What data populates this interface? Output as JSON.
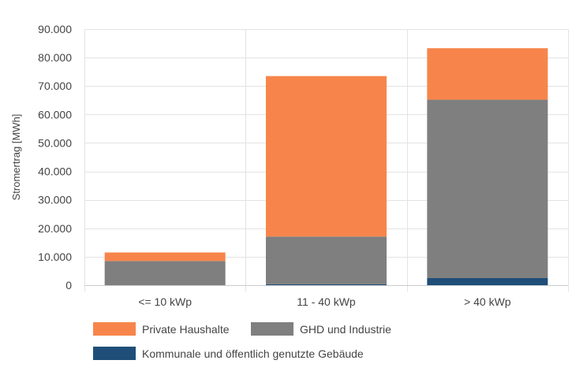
{
  "chart_data": {
    "type": "bar",
    "stacked": true,
    "title": "",
    "xlabel": "",
    "ylabel": "Stromertrag [MWh]",
    "ylim": [
      0,
      90000
    ],
    "yticks": [
      0,
      10000,
      20000,
      30000,
      40000,
      50000,
      60000,
      70000,
      80000,
      90000
    ],
    "ytick_labels": [
      "0",
      "10.000",
      "20.000",
      "30.000",
      "40.000",
      "50.000",
      "60.000",
      "70.000",
      "80.000",
      "90.000"
    ],
    "categories": [
      "<= 10 kWp",
      "11 - 40 kWp",
      "> 40 kWp"
    ],
    "grid": true,
    "legend_position": "bottom-left",
    "series": [
      {
        "name": "Kommunale und öffentlich genutzte Gebäude",
        "color": "#1f4e79",
        "values": [
          0,
          300,
          2500
        ]
      },
      {
        "name": "GHD und Industrie",
        "color": "#7f7f7f",
        "values": [
          8500,
          16800,
          62700
        ]
      },
      {
        "name": "Private Haushalte",
        "color": "#f7854b",
        "values": [
          3000,
          56400,
          18100
        ]
      }
    ],
    "legend_order": [
      "Private Haushalte",
      "GHD und Industrie",
      "Kommunale und öffentlich genutzte Gebäude"
    ]
  }
}
